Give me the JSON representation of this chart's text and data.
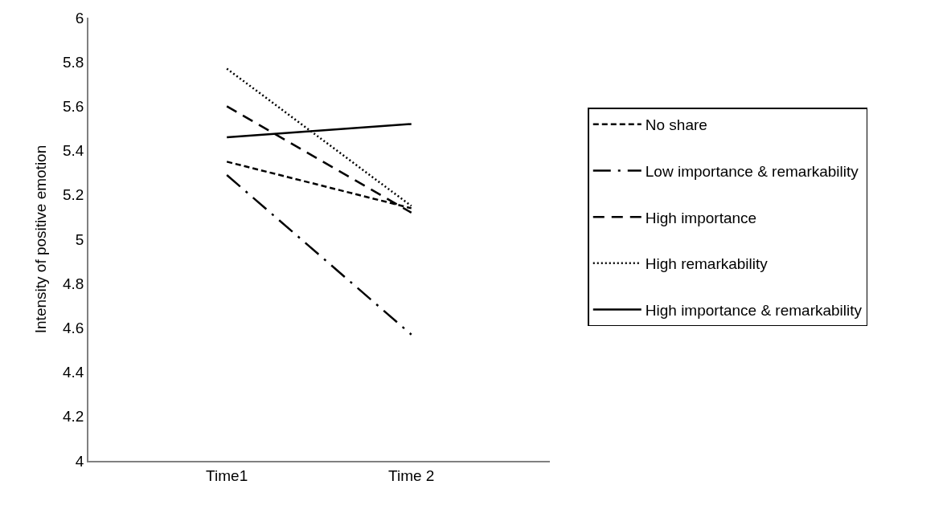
{
  "chart_data": {
    "type": "line",
    "ylabel": "Intensity of positive emotion",
    "categories": [
      "Time1",
      "Time 2"
    ],
    "series": [
      {
        "name": "No share",
        "color": "#000000",
        "line_style": "dash",
        "values": [
          5.35,
          5.14
        ]
      },
      {
        "name": "Low importance & remarkability",
        "color": "#000000",
        "line_style": "dashdot",
        "values": [
          5.29,
          4.57
        ]
      },
      {
        "name": "High importance",
        "color": "#000000",
        "line_style": "longdash",
        "values": [
          5.6,
          5.12
        ]
      },
      {
        "name": "High remarkability",
        "color": "#000000",
        "line_style": "dotted",
        "values": [
          5.77,
          5.15
        ]
      },
      {
        "name": "High importance & remarkability",
        "color": "#000000",
        "line_style": "solid",
        "values": [
          5.46,
          5.52
        ]
      }
    ],
    "ylim": [
      4,
      6
    ],
    "yticks": [
      4,
      4.2,
      4.4,
      4.6,
      4.8,
      5,
      5.2,
      5.4,
      5.6,
      5.8,
      6
    ],
    "legend": "right",
    "marker": "none"
  }
}
